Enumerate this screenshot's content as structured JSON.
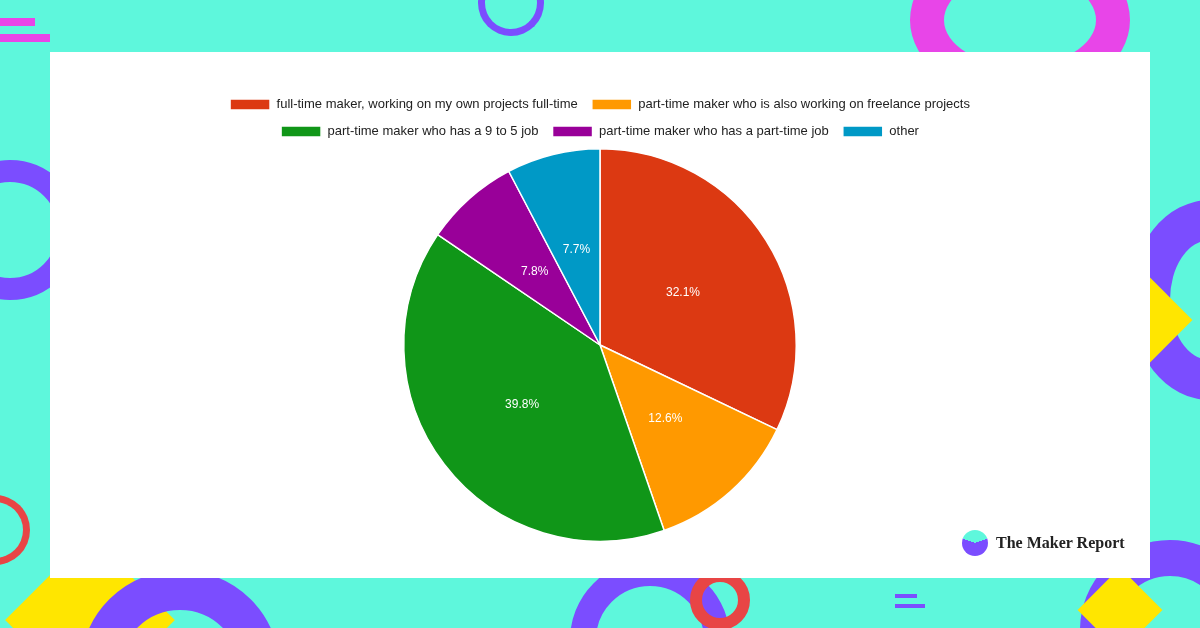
{
  "chart_data": {
    "type": "pie",
    "categories": [
      "full-time maker, working on my own projects full-time",
      "part-time maker who is also working on freelance projects",
      "part-time maker who has a 9 to 5 job",
      "part-time maker who has a part-time job",
      "other"
    ],
    "values": [
      32.1,
      12.6,
      39.8,
      7.8,
      7.7
    ],
    "value_labels": [
      "32.1%",
      "12.6%",
      "39.8%",
      "7.8%",
      "7.7%"
    ],
    "colors": [
      "#dc3912",
      "#ff9900",
      "#109618",
      "#990099",
      "#0099c6"
    ],
    "legend": "top",
    "data_labels": true
  },
  "brand": "The Maker Report"
}
